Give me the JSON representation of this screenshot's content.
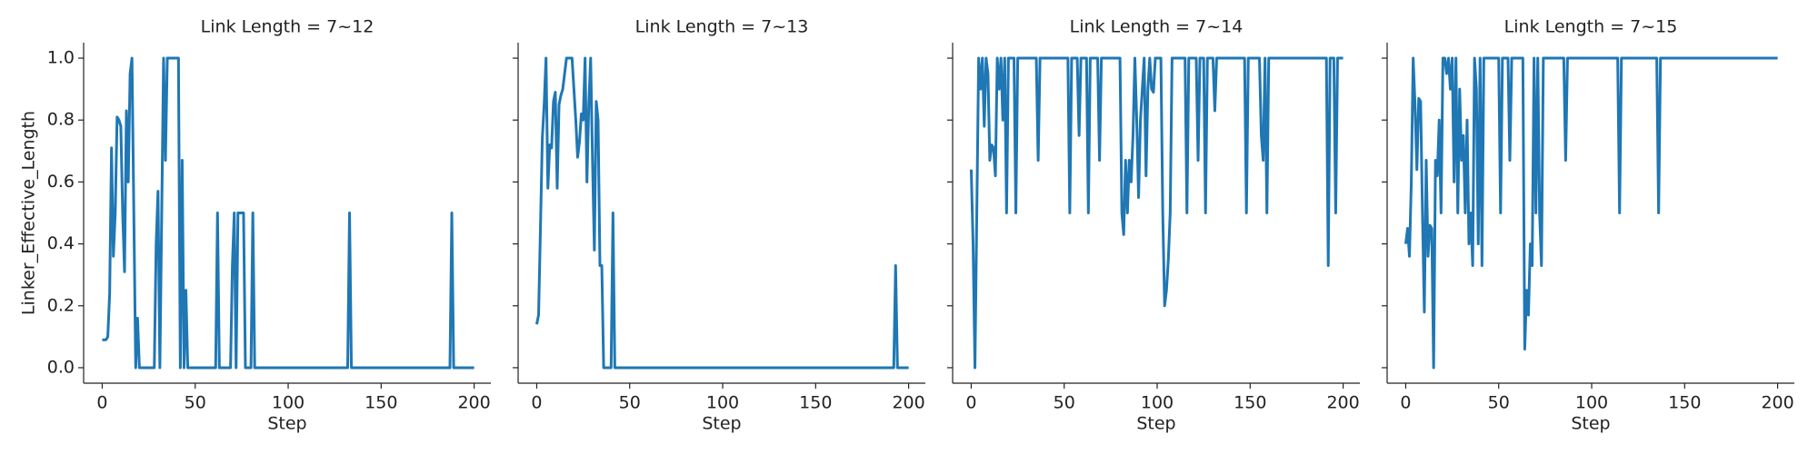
{
  "chart_data": [
    {
      "type": "line",
      "title": "Link Length = 7~12",
      "xlabel": "Step",
      "ylabel": "Linker_Effective_Length",
      "color": "#1f77b4",
      "xlim": [
        -10,
        209
      ],
      "xticks": [
        0,
        50,
        100,
        150,
        200
      ],
      "ylim": [
        -0.05,
        1.05
      ],
      "yticks": [
        {
          "value": 0,
          "label": "0.0"
        },
        {
          "value": 0.2,
          "label": "0.2"
        },
        {
          "value": 0.4,
          "label": "0.4"
        },
        {
          "value": 0.6,
          "label": "0.6"
        },
        {
          "value": 0.8,
          "label": "0.8"
        },
        {
          "value": 1,
          "label": "1.0"
        }
      ],
      "x": [
        0,
        1,
        2,
        3,
        4,
        5,
        6,
        7,
        8,
        9,
        10,
        11,
        12,
        13,
        14,
        15,
        16,
        17,
        18,
        19,
        20,
        25,
        28,
        29,
        30,
        31,
        32,
        33,
        34,
        35,
        36,
        40,
        41,
        42,
        43,
        44,
        45,
        46,
        61,
        62,
        63,
        69,
        70,
        71,
        72,
        73,
        76,
        77,
        80,
        81,
        82,
        132,
        133,
        134,
        187,
        188,
        189,
        200
      ],
      "values": [
        0.09,
        0.09,
        0.09,
        0.1,
        0.24,
        0.71,
        0.36,
        0.5,
        0.81,
        0.8,
        0.78,
        0.5,
        0.31,
        0.83,
        0.6,
        0.95,
        1.0,
        0.5,
        0.0,
        0.16,
        0.0,
        0.0,
        0.0,
        0.4,
        0.57,
        0.0,
        0.5,
        1.0,
        0.67,
        1.0,
        1.0,
        1.0,
        1.0,
        0.0,
        0.67,
        0.0,
        0.25,
        0.0,
        0.0,
        0.5,
        0.0,
        0.0,
        0.33,
        0.5,
        0.0,
        0.5,
        0.5,
        0.0,
        0.0,
        0.5,
        0.0,
        0.0,
        0.5,
        0.0,
        0.0,
        0.5,
        0.0,
        0.0
      ]
    },
    {
      "type": "line",
      "title": "Link Length = 7~13",
      "xlabel": "Step",
      "color": "#1f77b4",
      "sharey": true,
      "xlim": [
        -10,
        209
      ],
      "xticks": [
        0,
        50,
        100,
        150,
        200
      ],
      "ylim": [
        -0.05,
        1.05
      ],
      "x": [
        0,
        1,
        2,
        3,
        4,
        5,
        6,
        7,
        8,
        9,
        10,
        11,
        12,
        13,
        14,
        15,
        16,
        17,
        19,
        20,
        21,
        22,
        23,
        24,
        25,
        26,
        27,
        28,
        29,
        30,
        31,
        32,
        33,
        34,
        35,
        36,
        40,
        41,
        42,
        192,
        193,
        194,
        200
      ],
      "values": [
        0.14,
        0.17,
        0.45,
        0.74,
        0.85,
        1.0,
        0.58,
        0.72,
        0.71,
        0.86,
        0.89,
        0.58,
        0.85,
        0.88,
        0.9,
        0.95,
        1.0,
        1.0,
        1.0,
        0.9,
        0.8,
        0.68,
        0.73,
        0.82,
        0.8,
        1.0,
        0.6,
        0.85,
        1.0,
        0.67,
        0.38,
        0.86,
        0.8,
        0.33,
        0.33,
        0.0,
        0.0,
        0.5,
        0.0,
        0.0,
        0.33,
        0.0,
        0.0
      ]
    },
    {
      "type": "line",
      "title": "Link Length = 7~14",
      "xlabel": "Step",
      "color": "#1f77b4",
      "sharey": true,
      "xlim": [
        -10,
        209
      ],
      "xticks": [
        0,
        50,
        100,
        150,
        200
      ],
      "ylim": [
        -0.05,
        1.05
      ],
      "x": [
        0,
        1,
        2,
        3,
        4,
        5,
        6,
        7,
        8,
        9,
        10,
        11,
        12,
        13,
        14,
        15,
        16,
        17,
        18,
        19,
        20,
        23,
        24,
        25,
        35,
        36,
        37,
        52,
        53,
        54,
        57,
        58,
        59,
        62,
        63,
        64,
        68,
        69,
        70,
        80,
        81,
        82,
        83,
        84,
        85,
        86,
        87,
        88,
        89,
        90,
        91,
        92,
        93,
        94,
        95,
        96,
        97,
        98,
        99,
        102,
        103,
        104,
        105,
        106,
        107,
        108,
        115,
        116,
        117,
        121,
        122,
        123,
        125,
        126,
        127,
        130,
        131,
        132,
        147,
        148,
        149,
        155,
        156,
        157,
        158,
        159,
        160,
        191,
        192,
        193,
        195,
        196,
        197,
        200
      ],
      "values": [
        0.64,
        0.4,
        0.0,
        0.5,
        1.0,
        0.9,
        1.0,
        0.78,
        1.0,
        0.95,
        0.67,
        0.72,
        0.71,
        0.62,
        1.0,
        0.9,
        1.0,
        0.8,
        1.0,
        0.5,
        1.0,
        1.0,
        0.5,
        1.0,
        1.0,
        0.67,
        1.0,
        1.0,
        0.5,
        1.0,
        1.0,
        0.75,
        1.0,
        1.0,
        0.5,
        1.0,
        1.0,
        0.67,
        1.0,
        1.0,
        0.5,
        0.43,
        0.67,
        0.5,
        0.67,
        0.6,
        0.75,
        1.0,
        0.8,
        0.55,
        0.8,
        0.9,
        1.0,
        0.62,
        0.9,
        1.0,
        0.9,
        0.89,
        1.0,
        1.0,
        0.5,
        0.2,
        0.25,
        0.35,
        0.5,
        1.0,
        1.0,
        0.5,
        1.0,
        1.0,
        0.67,
        1.0,
        1.0,
        0.5,
        1.0,
        1.0,
        0.83,
        1.0,
        1.0,
        0.5,
        1.0,
        1.0,
        0.75,
        0.67,
        1.0,
        0.5,
        1.0,
        1.0,
        0.33,
        1.0,
        1.0,
        0.5,
        1.0,
        1.0
      ]
    },
    {
      "type": "line",
      "title": "Link Length = 7~15",
      "xlabel": "Step",
      "color": "#1f77b4",
      "sharey": true,
      "xlim": [
        -10,
        209
      ],
      "xticks": [
        0,
        50,
        100,
        150,
        200
      ],
      "ylim": [
        -0.05,
        1.05
      ],
      "x": [
        0,
        1,
        2,
        3,
        4,
        5,
        6,
        7,
        8,
        9,
        10,
        11,
        12,
        13,
        14,
        15,
        16,
        17,
        18,
        19,
        20,
        21,
        22,
        23,
        24,
        25,
        26,
        27,
        28,
        29,
        30,
        31,
        32,
        33,
        34,
        35,
        36,
        37,
        38,
        39,
        40,
        41,
        42,
        50,
        51,
        52,
        55,
        56,
        57,
        63,
        64,
        65,
        66,
        67,
        68,
        69,
        70,
        71,
        72,
        73,
        74,
        85,
        86,
        87,
        114,
        115,
        116,
        135,
        136,
        137,
        200
      ],
      "values": [
        0.4,
        0.45,
        0.36,
        0.6,
        1.0,
        0.85,
        0.64,
        0.87,
        0.86,
        0.5,
        0.18,
        0.67,
        0.36,
        0.46,
        0.45,
        0.0,
        0.67,
        0.62,
        0.8,
        0.5,
        1.0,
        1.0,
        0.95,
        1.0,
        0.9,
        1.0,
        0.6,
        1.0,
        0.5,
        0.9,
        0.67,
        0.75,
        0.5,
        0.8,
        0.4,
        0.5,
        0.33,
        1.0,
        0.9,
        0.4,
        1.0,
        0.33,
        1.0,
        1.0,
        0.5,
        1.0,
        1.0,
        0.67,
        1.0,
        1.0,
        0.06,
        0.25,
        0.17,
        0.4,
        0.33,
        1.0,
        0.5,
        1.0,
        0.5,
        0.33,
        1.0,
        1.0,
        0.67,
        1.0,
        1.0,
        0.5,
        1.0,
        1.0,
        0.5,
        1.0,
        1.0
      ]
    }
  ]
}
